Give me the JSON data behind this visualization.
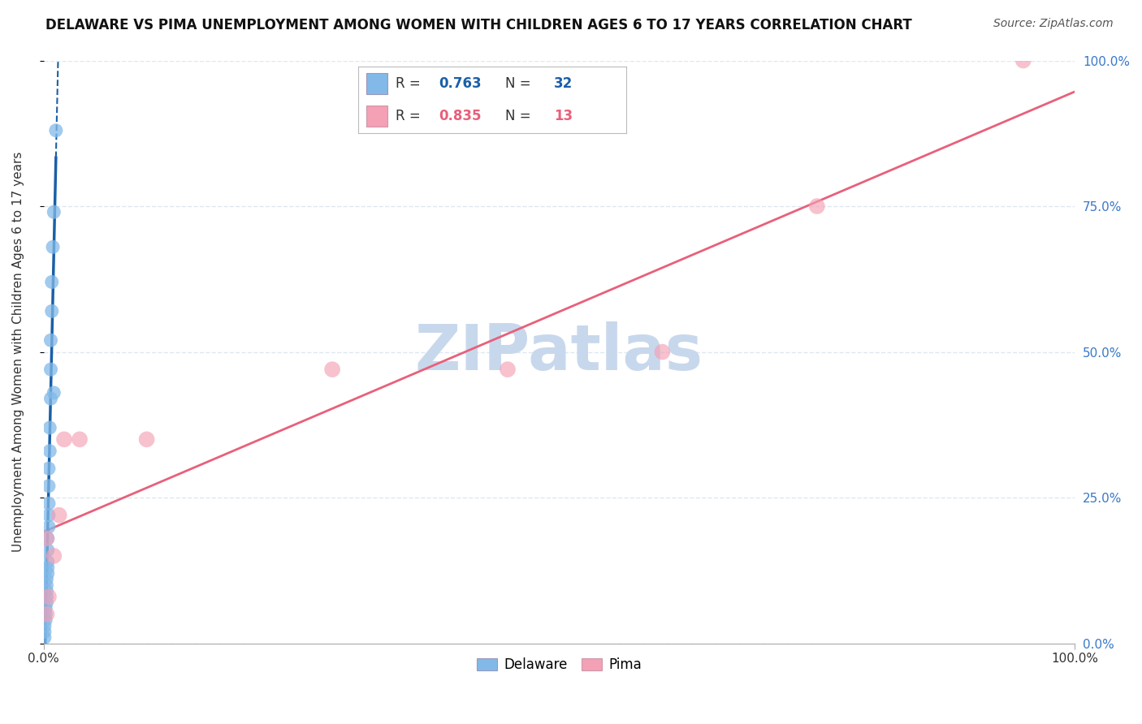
{
  "title": "DELAWARE VS PIMA UNEMPLOYMENT AMONG WOMEN WITH CHILDREN AGES 6 TO 17 YEARS CORRELATION CHART",
  "source": "Source: ZipAtlas.com",
  "ylabel": "Unemployment Among Women with Children Ages 6 to 17 years",
  "xlim": [
    0,
    1.0
  ],
  "ylim": [
    0,
    1.0
  ],
  "xticks": [
    0.0,
    1.0
  ],
  "xtick_labels": [
    "0.0%",
    "100.0%"
  ],
  "yticks": [
    0.0,
    0.25,
    0.5,
    0.75,
    1.0
  ],
  "ytick_labels": [
    "0.0%",
    "25.0%",
    "50.0%",
    "75.0%",
    "100.0%"
  ],
  "delaware_R": 0.763,
  "delaware_N": 32,
  "pima_R": 0.835,
  "pima_N": 13,
  "delaware_color": "#82b9e8",
  "pima_color": "#f4a0b5",
  "delaware_line_color": "#1a5fa8",
  "pima_line_color": "#e8607a",
  "watermark": "ZIPatlas",
  "watermark_color": "#c8d8ec",
  "legend_label_delaware": "Delaware",
  "legend_label_pima": "Pima",
  "delaware_x": [
    0.001,
    0.001,
    0.001,
    0.001,
    0.002,
    0.002,
    0.002,
    0.002,
    0.003,
    0.003,
    0.003,
    0.003,
    0.003,
    0.004,
    0.004,
    0.004,
    0.004,
    0.005,
    0.005,
    0.005,
    0.005,
    0.006,
    0.006,
    0.007,
    0.007,
    0.008,
    0.009,
    0.01,
    0.012,
    0.015,
    0.02,
    0.025
  ],
  "delaware_y": [
    0.01,
    0.02,
    0.03,
    0.04,
    0.05,
    0.06,
    0.07,
    0.08,
    0.09,
    0.1,
    0.12,
    0.14,
    0.17,
    0.2,
    0.23,
    0.27,
    0.31,
    0.35,
    0.4,
    0.45,
    0.5,
    0.55,
    0.61,
    0.67,
    0.74,
    0.5,
    0.42,
    0.36,
    0.3,
    0.25,
    0.88,
    0.45
  ],
  "pima_x": [
    0.003,
    0.005,
    0.008,
    0.012,
    0.018,
    0.025,
    0.04,
    0.1,
    0.28,
    0.45,
    0.6,
    0.75,
    0.95
  ],
  "pima_y": [
    0.05,
    0.08,
    0.12,
    0.18,
    0.15,
    0.22,
    0.35,
    0.35,
    0.47,
    0.47,
    0.5,
    0.75,
    1.0
  ],
  "background_color": "#ffffff",
  "grid_color": "#dde8f0",
  "grid_style": "--"
}
